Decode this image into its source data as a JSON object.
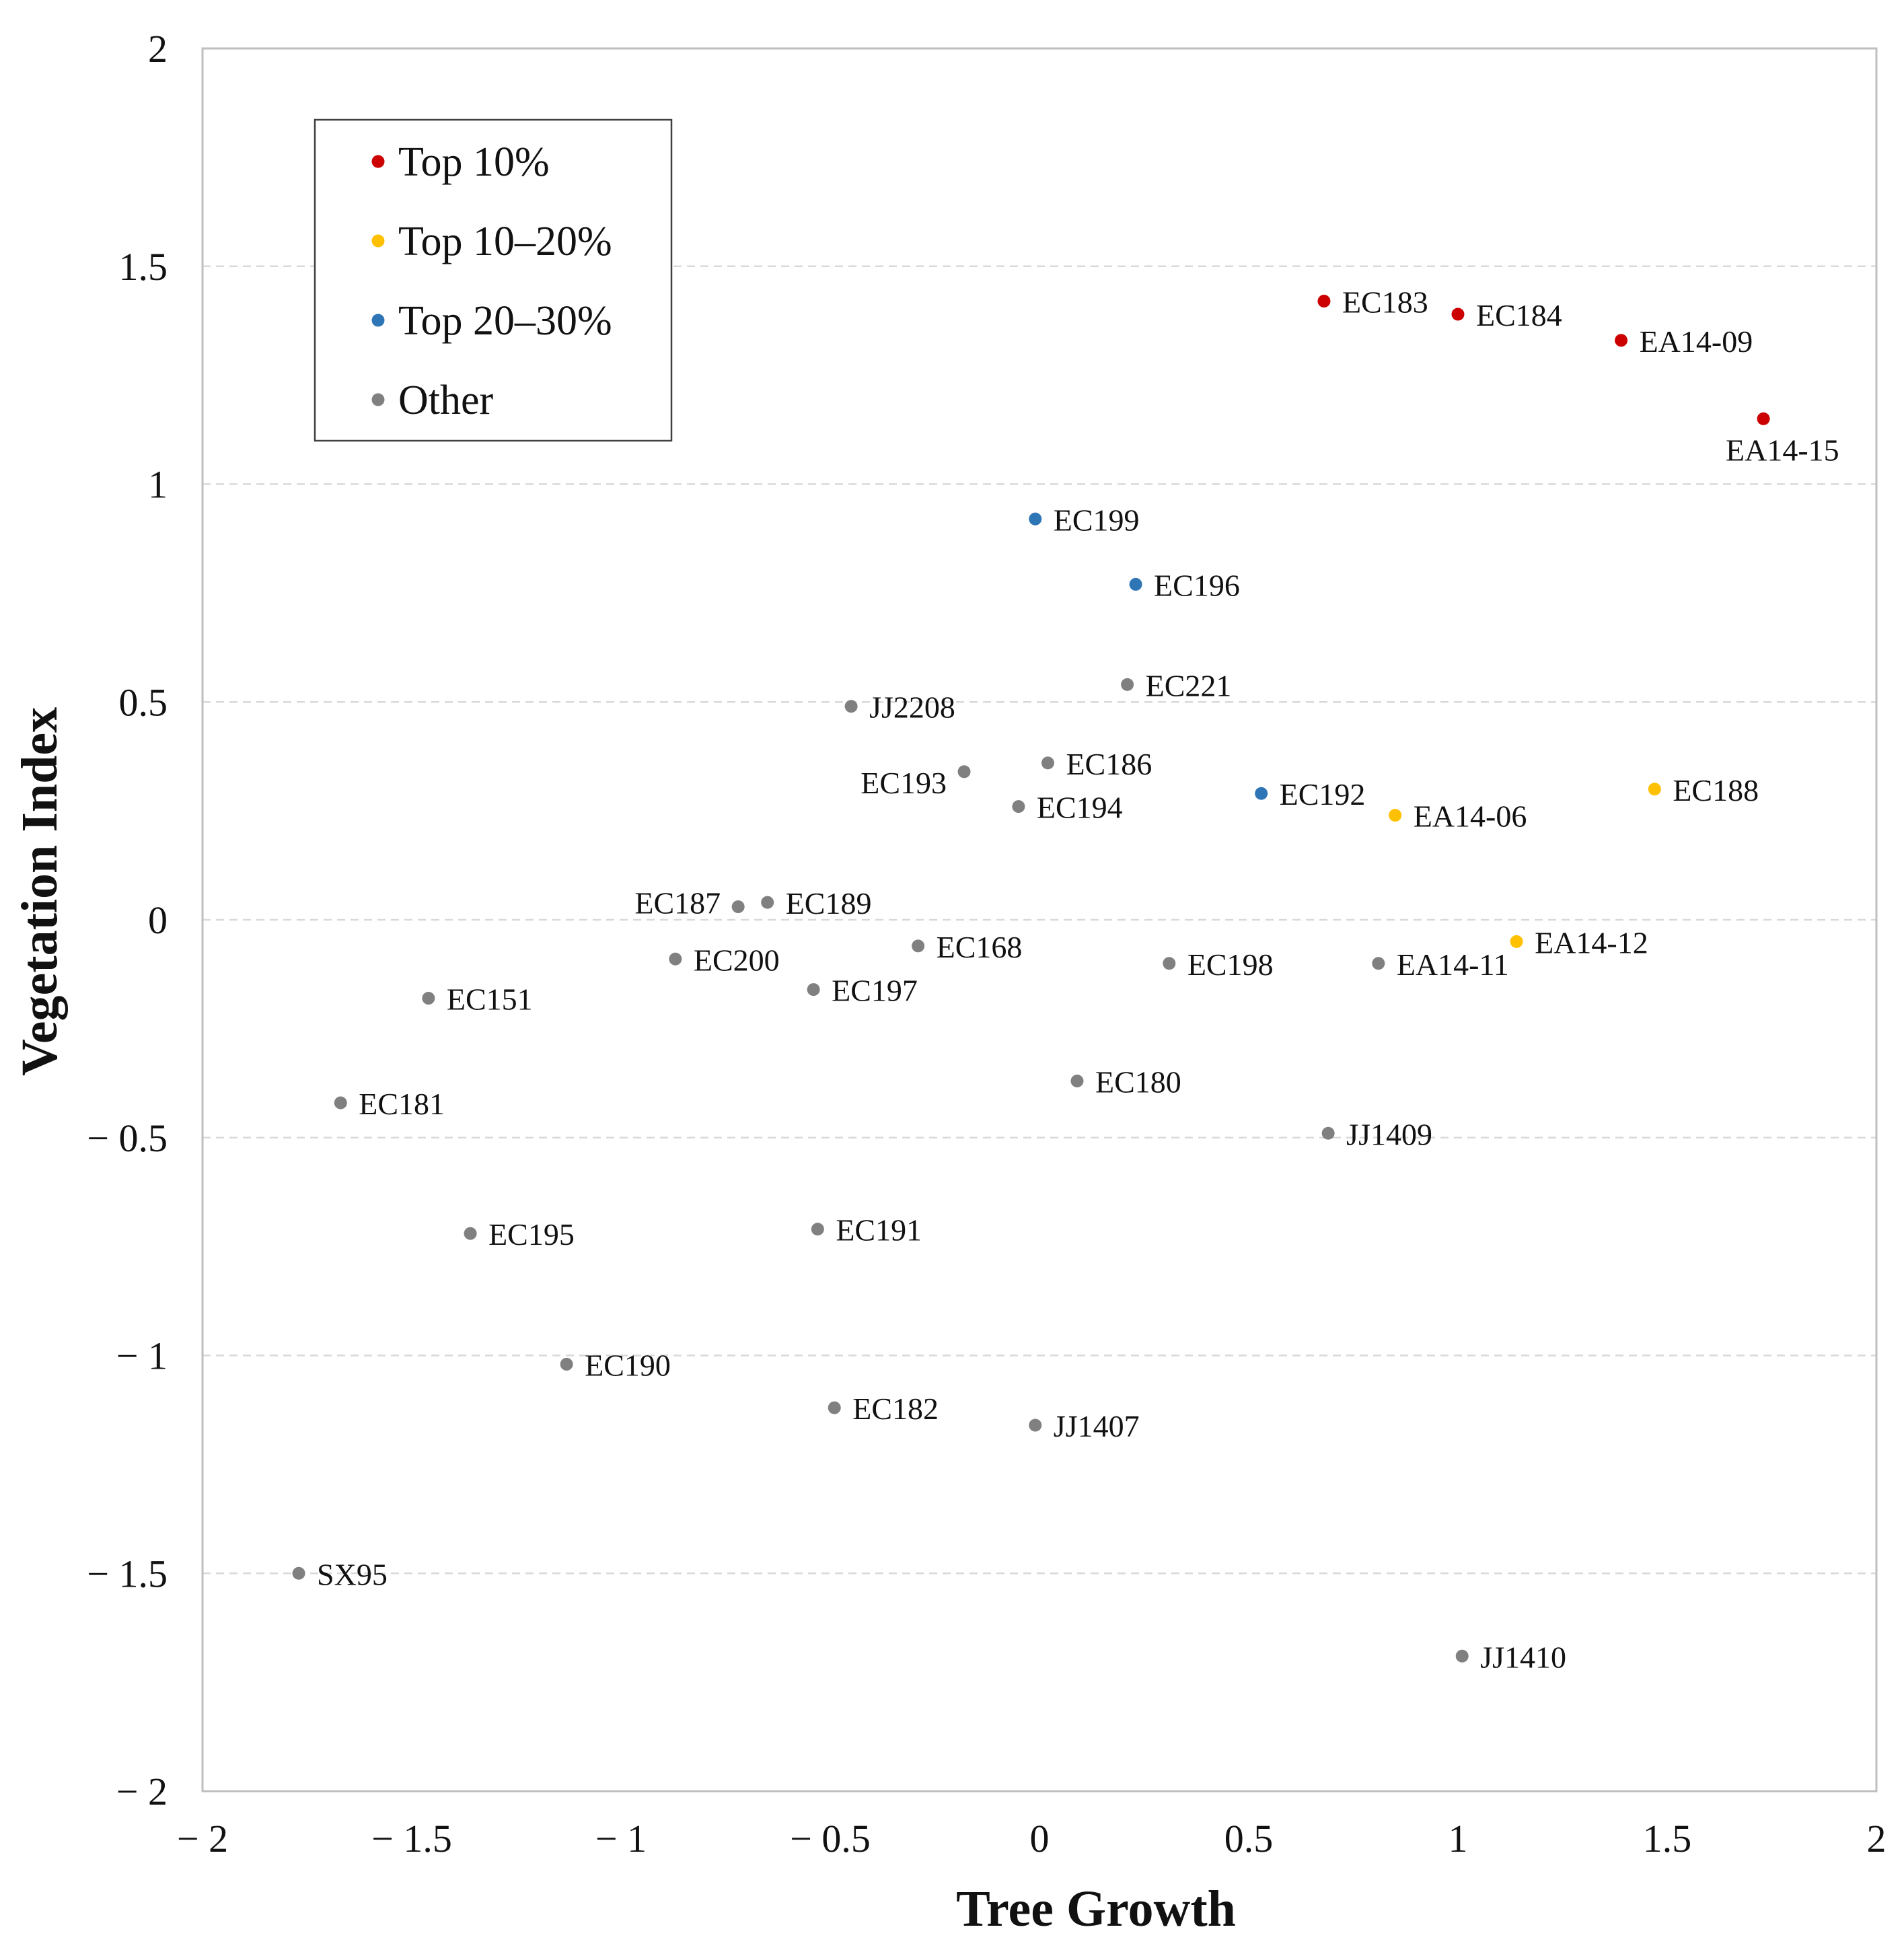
{
  "chart_data": {
    "type": "scatter",
    "xlabel": "Tree Growth",
    "ylabel": "Vegetation Index",
    "xlim": [
      -2,
      2
    ],
    "ylim": [
      -2,
      2
    ],
    "xticks": [
      -2,
      -1.5,
      -1,
      -0.5,
      0,
      0.5,
      1,
      1.5,
      2
    ],
    "yticks": [
      -2,
      -1.5,
      -1,
      -0.5,
      0,
      0.5,
      1,
      1.5,
      2
    ],
    "xtick_labels": [
      "− 2",
      "− 1.5",
      "− 1",
      "− 0.5",
      "0",
      "0.5",
      "1",
      "1.5",
      "2"
    ],
    "ytick_labels": [
      "− 2",
      "− 1.5",
      "− 1",
      "− 0.5",
      "0",
      "0.5",
      "1",
      "1.5",
      "2"
    ],
    "grid": true,
    "legend_position": "top-left",
    "series": [
      {
        "name": "Top 10%",
        "color": "#cc0000",
        "points": [
          {
            "label": "EC183",
            "x": 0.68,
            "y": 1.42
          },
          {
            "label": "EC184",
            "x": 1.0,
            "y": 1.39
          },
          {
            "label": "EA14-09",
            "x": 1.39,
            "y": 1.33
          },
          {
            "label": "EA14-15",
            "x": 1.73,
            "y": 1.15
          }
        ]
      },
      {
        "name": "Top 10–20%",
        "color": "#ffc000",
        "points": [
          {
            "label": "EC188",
            "x": 1.47,
            "y": 0.3
          },
          {
            "label": "EA14-06",
            "x": 0.85,
            "y": 0.24
          },
          {
            "label": "EA14-12",
            "x": 1.14,
            "y": -0.05
          }
        ]
      },
      {
        "name": "Top 20–30%",
        "color": "#2e75b6",
        "points": [
          {
            "label": "EC199",
            "x": -0.01,
            "y": 0.92
          },
          {
            "label": "EC196",
            "x": 0.23,
            "y": 0.77
          },
          {
            "label": "EC192",
            "x": 0.53,
            "y": 0.29
          }
        ]
      },
      {
        "name": "Other",
        "color": "#808080",
        "points": [
          {
            "label": "EC221",
            "x": 0.21,
            "y": 0.54
          },
          {
            "label": "JJ2208",
            "x": -0.45,
            "y": 0.49
          },
          {
            "label": "EC186",
            "x": 0.02,
            "y": 0.36
          },
          {
            "label": "EC193",
            "x": -0.18,
            "y": 0.34
          },
          {
            "label": "EC194",
            "x": -0.05,
            "y": 0.26
          },
          {
            "label": "EC189",
            "x": -0.65,
            "y": 0.04
          },
          {
            "label": "EC187",
            "x": -0.72,
            "y": 0.03
          },
          {
            "label": "EC168",
            "x": -0.29,
            "y": -0.06
          },
          {
            "label": "EC200",
            "x": -0.87,
            "y": -0.09
          },
          {
            "label": "EC198",
            "x": 0.31,
            "y": -0.1
          },
          {
            "label": "EA14-11",
            "x": 0.81,
            "y": -0.1
          },
          {
            "label": "EC197",
            "x": -0.54,
            "y": -0.16
          },
          {
            "label": "EC151",
            "x": -1.46,
            "y": -0.18
          },
          {
            "label": "EC180",
            "x": 0.09,
            "y": -0.37
          },
          {
            "label": "EC181",
            "x": -1.67,
            "y": -0.42
          },
          {
            "label": "JJ1409",
            "x": 0.69,
            "y": -0.49
          },
          {
            "label": "EC191",
            "x": -0.53,
            "y": -0.71
          },
          {
            "label": "EC195",
            "x": -1.36,
            "y": -0.72
          },
          {
            "label": "EC190",
            "x": -1.13,
            "y": -1.02
          },
          {
            "label": "EC182",
            "x": -0.49,
            "y": -1.12
          },
          {
            "label": "JJ1407",
            "x": -0.01,
            "y": -1.16
          },
          {
            "label": "SX95",
            "x": -1.77,
            "y": -1.5
          },
          {
            "label": "JJ1410",
            "x": 1.01,
            "y": -1.69
          }
        ]
      }
    ]
  }
}
